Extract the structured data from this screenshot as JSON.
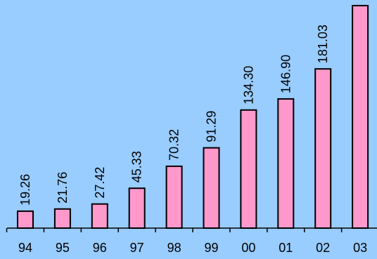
{
  "background_color": "#99ccff",
  "bar_color": "#ff99cc",
  "chart_data": {
    "type": "bar",
    "categories": [
      "94",
      "95",
      "96",
      "97",
      "98",
      "99",
      "00",
      "01",
      "02",
      "03"
    ],
    "values": [
      19.26,
      21.76,
      27.42,
      45.33,
      70.32,
      91.29,
      134.3,
      146.9,
      181.03,
      253.0
    ],
    "data_labels": [
      "19.26",
      "21.76",
      "27.42",
      "45.33",
      "70.32",
      "91.29",
      "134.30",
      "146.90",
      "181.03",
      ""
    ],
    "title": "",
    "xlabel": "",
    "ylabel": "",
    "ylim": [
      0,
      253
    ],
    "grid": false,
    "legend": "none"
  }
}
